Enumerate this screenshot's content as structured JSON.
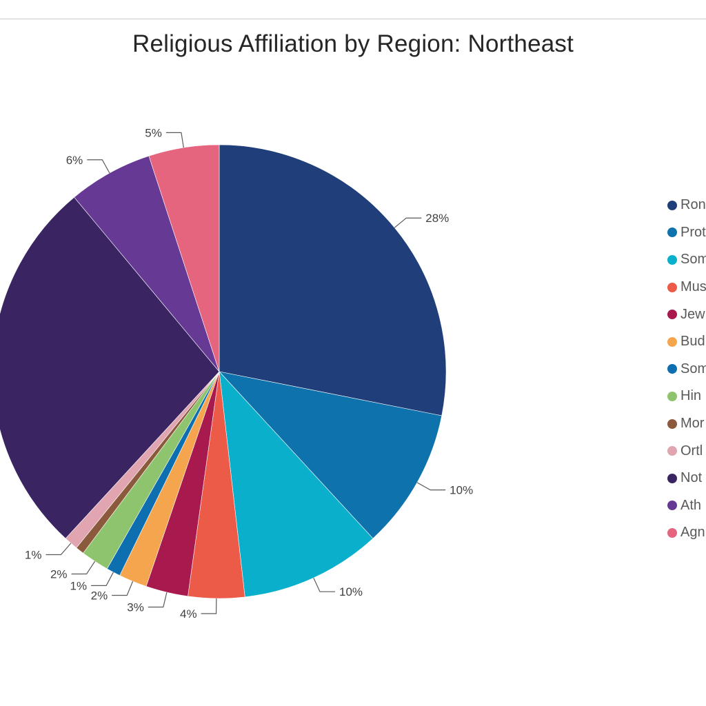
{
  "chart_data": {
    "type": "pie",
    "title": "Religious Affiliation by Region: Northeast",
    "legend_position": "right",
    "start_angle_deg": 0,
    "direction": "clockwise",
    "slices": [
      {
        "name": "Ron",
        "value": 28,
        "label": "28%",
        "color": "#203f7a",
        "legend_top": 0
      },
      {
        "name": "Prot",
        "value": 10,
        "label": "10%",
        "color": "#0e73ad"
      },
      {
        "name": "Som",
        "value": 10,
        "label": "10%",
        "color": "#0aafcc"
      },
      {
        "name": "Mus",
        "value": 4,
        "label": "4%",
        "color": "#ec5a48"
      },
      {
        "name": "Jew",
        "value": 3,
        "label": "3%",
        "color": "#a8194d"
      },
      {
        "name": "Bud",
        "value": 2,
        "label": "2%",
        "color": "#f4a54e"
      },
      {
        "name": "Som",
        "value": 1,
        "label": "1%",
        "color": "#0e6fb0"
      },
      {
        "name": "Hin",
        "value": 2,
        "label": "2%",
        "color": "#8fc46e"
      },
      {
        "name": "Mor",
        "value": 0.6,
        "label": "",
        "color": "#8b5a3c"
      },
      {
        "name": "Ortl",
        "value": 1,
        "label": "1%",
        "color": "#e0a5b0"
      },
      {
        "name": "Not",
        "value": 27,
        "label": "",
        "color": "#3a2562"
      },
      {
        "name": "Ath",
        "value": 6,
        "label": "6%",
        "color": "#663994"
      },
      {
        "name": "Agn",
        "value": 5,
        "label": "5%",
        "color": "#e5657f"
      }
    ]
  }
}
